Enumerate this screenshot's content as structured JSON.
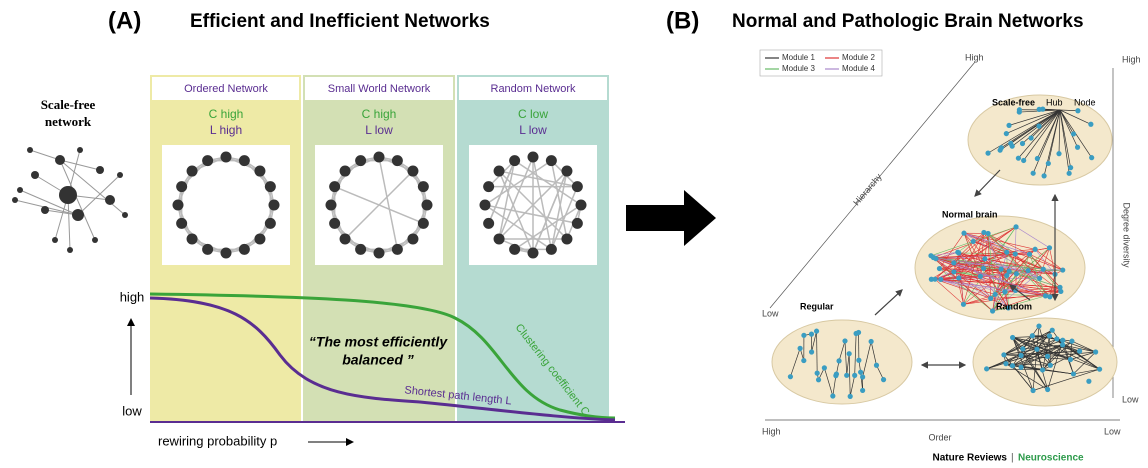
{
  "panel_a": {
    "label": "(A)",
    "title": "Efficient and Inefficient Networks",
    "scale_free_label": [
      "Scale-free",
      "network"
    ],
    "columns": [
      {
        "name": "Ordered Network",
        "c": "C high",
        "l": "L high"
      },
      {
        "name": "Small World Network",
        "c": "C high",
        "l": "L low"
      },
      {
        "name": "Random Network",
        "c": "C low",
        "l": "L low"
      }
    ],
    "y_high": "high",
    "y_low": "low",
    "quote": [
      "“The most efficiently",
      "balanced ”"
    ],
    "clustering_label": "Clustering coefficient C",
    "path_label": "Shortest path length L",
    "x_axis_label": "rewiring probability p"
  },
  "panel_b": {
    "label": "(B)",
    "title": "Normal and Pathologic Brain Networks",
    "legend": [
      "Module 1",
      "Module 2",
      "Module 3",
      "Module 4"
    ],
    "brains": [
      "Scale-free",
      "Normal brain",
      "Regular",
      "Random"
    ],
    "hub": "Hub",
    "node": "Node",
    "hierarchy": "Hierarchy",
    "degree_diversity": "Degree diversity",
    "order": "Order",
    "high": "High",
    "low": "Low",
    "credit_journal": "Nature Reviews",
    "credit_field": "Neuroscience"
  }
}
